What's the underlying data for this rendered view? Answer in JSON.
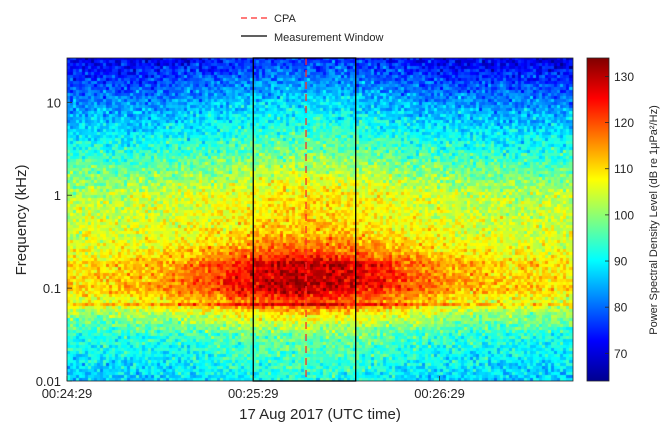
{
  "chart_data": {
    "type": "heatmap",
    "title": "",
    "xlabel": "17 Aug 2017 (UTC time)",
    "ylabel": "Frequency (kHz)",
    "x_ticks": [
      "00:24:29",
      "00:25:29",
      "00:26:29"
    ],
    "x_range": [
      "00:24:29",
      "00:27:12"
    ],
    "y_scale": "log",
    "y_range": [
      0.01,
      30
    ],
    "y_ticks": [
      {
        "value": 0.01,
        "label": "0.01"
      },
      {
        "value": 0.1,
        "label": "0.1"
      },
      {
        "value": 1,
        "label": "1"
      },
      {
        "value": 10,
        "label": "10"
      }
    ],
    "colorbar": {
      "label": "Power Spectral Density Level (dB re 1μPa²/Hz)",
      "range": [
        64,
        134
      ],
      "ticks": [
        70,
        80,
        90,
        100,
        110,
        120,
        130
      ]
    },
    "colormap": "jet",
    "legend": {
      "placement": "top-center",
      "items": [
        {
          "label": "CPA",
          "color": "#ff2a2a",
          "style": "dashed"
        },
        {
          "label": "Measurement Window",
          "color": "#000000",
          "style": "solid"
        }
      ]
    },
    "cpa_time": "00:25:46",
    "measurement_window": [
      "00:25:29",
      "00:26:02"
    ],
    "tonal_lines_khz": [
      0.065,
      0.18
    ],
    "notes_psd_db": {
      "peak_near_cpa_0.06_to_0.3_khz": 125,
      "tonal_0.065_khz": 126,
      "mid_band_1_khz": 103,
      "high_band_10_khz": 82,
      "top_band_30_khz": 70,
      "low_band_0.01_khz": 86
    }
  }
}
